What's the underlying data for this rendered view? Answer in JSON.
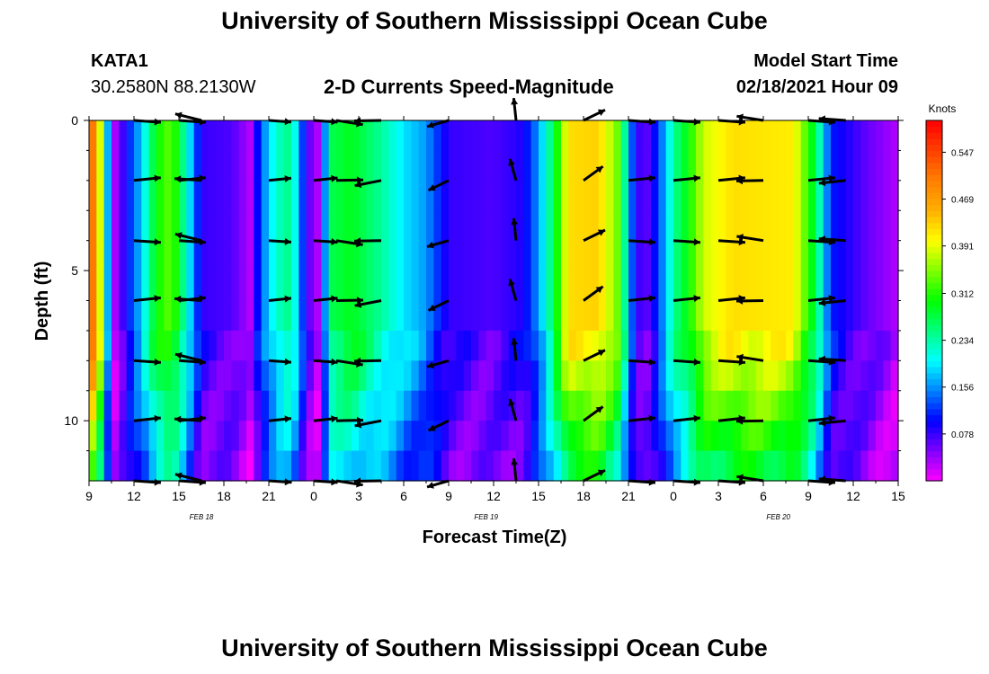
{
  "header": {
    "title": "University of Southern Mississippi Ocean Cube",
    "station": "KATA1",
    "coords": "30.2580N 88.2130W",
    "subtitle": "2-D Currents Speed-Magnitude",
    "model_start_label": "Model Start Time",
    "model_start_value": "02/18/2021 Hour 09"
  },
  "footer": {
    "title": "University of Southern Mississippi Ocean Cube"
  },
  "colors": {
    "background": "#ffffff",
    "arrow": "#000000",
    "colormap": [
      "#ff00ff",
      "#8000ff",
      "#0000ff",
      "#0080ff",
      "#00ffff",
      "#00ff80",
      "#00ff00",
      "#80ff00",
      "#ffff00",
      "#ffb000",
      "#ff8000",
      "#ff4000",
      "#ff0000"
    ]
  },
  "chart_data": {
    "type": "heatmap",
    "title": "2-D Currents Speed-Magnitude",
    "xlabel": "Forecast Time(Z)",
    "ylabel": "Depth (ft)",
    "x_range_hours": [
      0,
      54
    ],
    "ylim": [
      0,
      12
    ],
    "x_tick_labels": [
      "9",
      "12",
      "15",
      "18",
      "21",
      "0",
      "3",
      "6",
      "9",
      "12",
      "15",
      "18",
      "21",
      "0",
      "3",
      "6",
      "9",
      "12",
      "15"
    ],
    "y_tick_labels": [
      "0",
      "5",
      "10"
    ],
    "y_ticks": [
      0,
      5,
      10
    ],
    "date_labels": [
      {
        "text": "FEB 18",
        "hour": 7.5
      },
      {
        "text": "FEB 19",
        "hour": 26.5
      },
      {
        "text": "FEB 20",
        "hour": 46
      }
    ],
    "colorbar": {
      "label": "Knots",
      "min": 0,
      "max": 0.6,
      "ticks": [
        "0.078",
        "0.156",
        "0.234",
        "0.312",
        "0.391",
        "0.469",
        "0.547"
      ]
    },
    "profile": [
      {
        "t": 0.0,
        "s": 0.56
      },
      {
        "t": 0.5,
        "s": 0.45
      },
      {
        "t": 1.0,
        "s": 0.32
      },
      {
        "t": 1.5,
        "s": 0.02
      },
      {
        "t": 2.0,
        "s": 0.05
      },
      {
        "t": 2.5,
        "s": 0.1
      },
      {
        "t": 3.5,
        "s": 0.18
      },
      {
        "t": 4.5,
        "s": 0.3
      },
      {
        "t": 5.5,
        "s": 0.34
      },
      {
        "t": 6.5,
        "s": 0.22
      },
      {
        "t": 7.5,
        "s": 0.08
      },
      {
        "t": 9.5,
        "s": 0.07
      },
      {
        "t": 10.8,
        "s": 0.03
      },
      {
        "t": 11.5,
        "s": 0.14
      },
      {
        "t": 12.5,
        "s": 0.22
      },
      {
        "t": 13.5,
        "s": 0.25
      },
      {
        "t": 14.5,
        "s": 0.08
      },
      {
        "t": 15.2,
        "s": 0.02
      },
      {
        "t": 16.2,
        "s": 0.27
      },
      {
        "t": 17.5,
        "s": 0.29
      },
      {
        "t": 19.5,
        "s": 0.24
      },
      {
        "t": 21.0,
        "s": 0.19
      },
      {
        "t": 22.5,
        "s": 0.16
      },
      {
        "t": 24.0,
        "s": 0.08
      },
      {
        "t": 27.0,
        "s": 0.07
      },
      {
        "t": 29.0,
        "s": 0.09
      },
      {
        "t": 30.0,
        "s": 0.16
      },
      {
        "t": 31.0,
        "s": 0.27
      },
      {
        "t": 32.0,
        "s": 0.42
      },
      {
        "t": 34.0,
        "s": 0.43
      },
      {
        "t": 35.3,
        "s": 0.34
      },
      {
        "t": 36.3,
        "s": 0.12
      },
      {
        "t": 37.0,
        "s": 0.05
      },
      {
        "t": 38.0,
        "s": 0.12
      },
      {
        "t": 39.0,
        "s": 0.24
      },
      {
        "t": 40.0,
        "s": 0.3
      },
      {
        "t": 41.0,
        "s": 0.38
      },
      {
        "t": 43.0,
        "s": 0.42
      },
      {
        "t": 47.0,
        "s": 0.41
      },
      {
        "t": 48.5,
        "s": 0.27
      },
      {
        "t": 49.5,
        "s": 0.11
      },
      {
        "t": 52.0,
        "s": 0.06
      },
      {
        "t": 54.0,
        "s": 0.03
      }
    ],
    "arrow_times": [
      3,
      6,
      7.5,
      12,
      15,
      16.5,
      19.5,
      24,
      28.5,
      33,
      36,
      39,
      42,
      45,
      48,
      50.5
    ],
    "arrow_depths": [
      0,
      2,
      4,
      6,
      8,
      10,
      12
    ],
    "arrow_angles_deg": [
      0,
      0,
      170,
      0,
      0,
      -5,
      185,
      200,
      100,
      30,
      0,
      0,
      0,
      175,
      0,
      180
    ],
    "arrow_lengths_h": [
      1.8,
      1.8,
      1.8,
      1.5,
      1.6,
      1.8,
      1.8,
      1.5,
      1.5,
      1.6,
      1.8,
      1.8,
      1.8,
      1.8,
      1.8,
      1.8
    ]
  }
}
